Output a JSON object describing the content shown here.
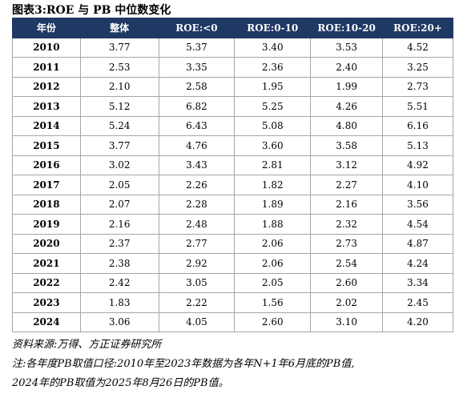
{
  "title": "图表3:ROE 与 PB 中位数变化",
  "table": {
    "header": [
      "年份",
      "整体",
      "ROE:<0",
      "ROE:0-10",
      "ROE:10-20",
      "ROE:20+"
    ],
    "rows": [
      [
        "2010",
        "3.77",
        "5.37",
        "3.40",
        "3.53",
        "4.52"
      ],
      [
        "2011",
        "2.53",
        "3.35",
        "2.36",
        "2.40",
        "3.25"
      ],
      [
        "2012",
        "2.10",
        "2.58",
        "1.95",
        "1.99",
        "2.73"
      ],
      [
        "2013",
        "5.12",
        "6.82",
        "5.25",
        "4.26",
        "5.51"
      ],
      [
        "2014",
        "5.24",
        "6.43",
        "5.08",
        "4.80",
        "6.16"
      ],
      [
        "2015",
        "3.77",
        "4.76",
        "3.60",
        "3.58",
        "5.13"
      ],
      [
        "2016",
        "3.02",
        "3.43",
        "2.81",
        "3.12",
        "4.92"
      ],
      [
        "2017",
        "2.05",
        "2.26",
        "1.82",
        "2.27",
        "4.10"
      ],
      [
        "2018",
        "2.07",
        "2.28",
        "1.89",
        "2.16",
        "3.56"
      ],
      [
        "2019",
        "2.16",
        "2.48",
        "1.88",
        "2.32",
        "4.54"
      ],
      [
        "2020",
        "2.37",
        "2.77",
        "2.06",
        "2.73",
        "4.87"
      ],
      [
        "2021",
        "2.38",
        "2.92",
        "2.06",
        "2.54",
        "4.24"
      ],
      [
        "2022",
        "2.42",
        "3.05",
        "2.05",
        "2.60",
        "3.34"
      ],
      [
        "2023",
        "1.83",
        "2.22",
        "1.56",
        "2.02",
        "2.45"
      ],
      [
        "2024",
        "3.06",
        "4.05",
        "2.60",
        "3.10",
        "4.20"
      ]
    ]
  },
  "source": "资料来源:万得、方正证券研究所",
  "notes": [
    "注:各年度PB取值口径:2010年至2023年数据为各年N+1年6月底的PB值,",
    "2024年的PB取值为2025年8月26日的PB值。"
  ]
}
